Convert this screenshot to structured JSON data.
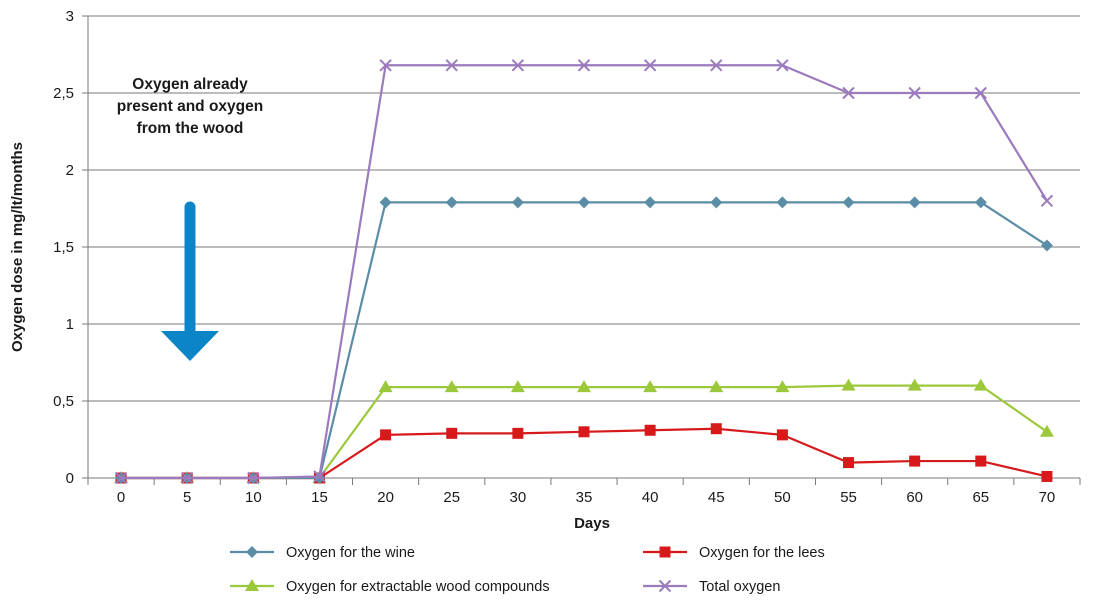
{
  "chart_data": {
    "type": "line",
    "title": "",
    "xlabel": "Days",
    "ylabel": "Oxygen dose in mg/lt/months",
    "x": [
      0,
      5,
      10,
      15,
      20,
      25,
      30,
      35,
      40,
      45,
      50,
      55,
      60,
      65,
      70
    ],
    "x_tick_labels": [
      "0",
      "5",
      "10",
      "15",
      "20",
      "25",
      "30",
      "35",
      "40",
      "45",
      "50",
      "55",
      "60",
      "65",
      "70"
    ],
    "ylim": [
      0,
      3
    ],
    "y_ticks": [
      0,
      0.5,
      1,
      1.5,
      2,
      2.5,
      3
    ],
    "y_tick_labels": [
      "0",
      "0,5",
      "1",
      "1,5",
      "2",
      "2,5",
      "3"
    ],
    "grid": "horizontal",
    "legend_position": "bottom",
    "series": [
      {
        "name": "Oxygen for the wine",
        "color": "#5b8ea6",
        "marker": "diamond",
        "values": [
          0,
          0,
          0,
          0,
          1.79,
          1.79,
          1.79,
          1.79,
          1.79,
          1.79,
          1.79,
          1.79,
          1.79,
          1.79,
          1.51
        ]
      },
      {
        "name": "Oxygen for the lees",
        "color": "#d7191c",
        "marker": "square",
        "values": [
          0,
          0,
          0,
          0,
          0.28,
          0.29,
          0.29,
          0.3,
          0.31,
          0.32,
          0.28,
          0.1,
          0.11,
          0.11,
          0.01
        ]
      },
      {
        "name": "Oxygen for extractable wood compounds",
        "color": "#9cc93b",
        "marker": "triangle",
        "values": [
          0,
          0,
          0,
          0,
          0.59,
          0.59,
          0.59,
          0.59,
          0.59,
          0.59,
          0.59,
          0.6,
          0.6,
          0.6,
          0.3
        ]
      },
      {
        "name": "Total oxygen",
        "color": "#9b7bbd",
        "marker": "x",
        "values": [
          0,
          0,
          0,
          0.01,
          2.68,
          2.68,
          2.68,
          2.68,
          2.68,
          2.68,
          2.68,
          2.5,
          2.5,
          2.5,
          1.8
        ]
      }
    ],
    "annotation": {
      "lines": [
        "Oxygen already",
        "present and oxygen",
        "from the wood"
      ],
      "arrow_direction": "down",
      "arrow_color": "#0b85c7"
    }
  }
}
